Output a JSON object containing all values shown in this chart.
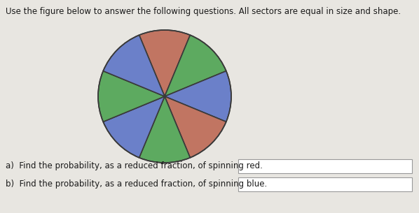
{
  "title": "Use the figure below to answer the following questions. All sectors are equal in size and shape.",
  "num_sectors": 8,
  "sector_colors": [
    "#c17562",
    "#5daa60",
    "#6b80c9",
    "#c17562",
    "#5daa60",
    "#6b80c9",
    "#5daa60",
    "#6b80c9"
  ],
  "start_angle": 112.5,
  "edge_color": "#3a3a3a",
  "edge_linewidth": 1.2,
  "bg_color": "#e8e6e1",
  "text_color": "#1a1a1a",
  "title_fontsize": 8.5,
  "label_fontsize": 8.5,
  "question_a": "a)  Find the probability, as a reduced fraction, of spinning red.",
  "question_b": "b)  Find the probability, as a reduced fraction, of spinning blue."
}
